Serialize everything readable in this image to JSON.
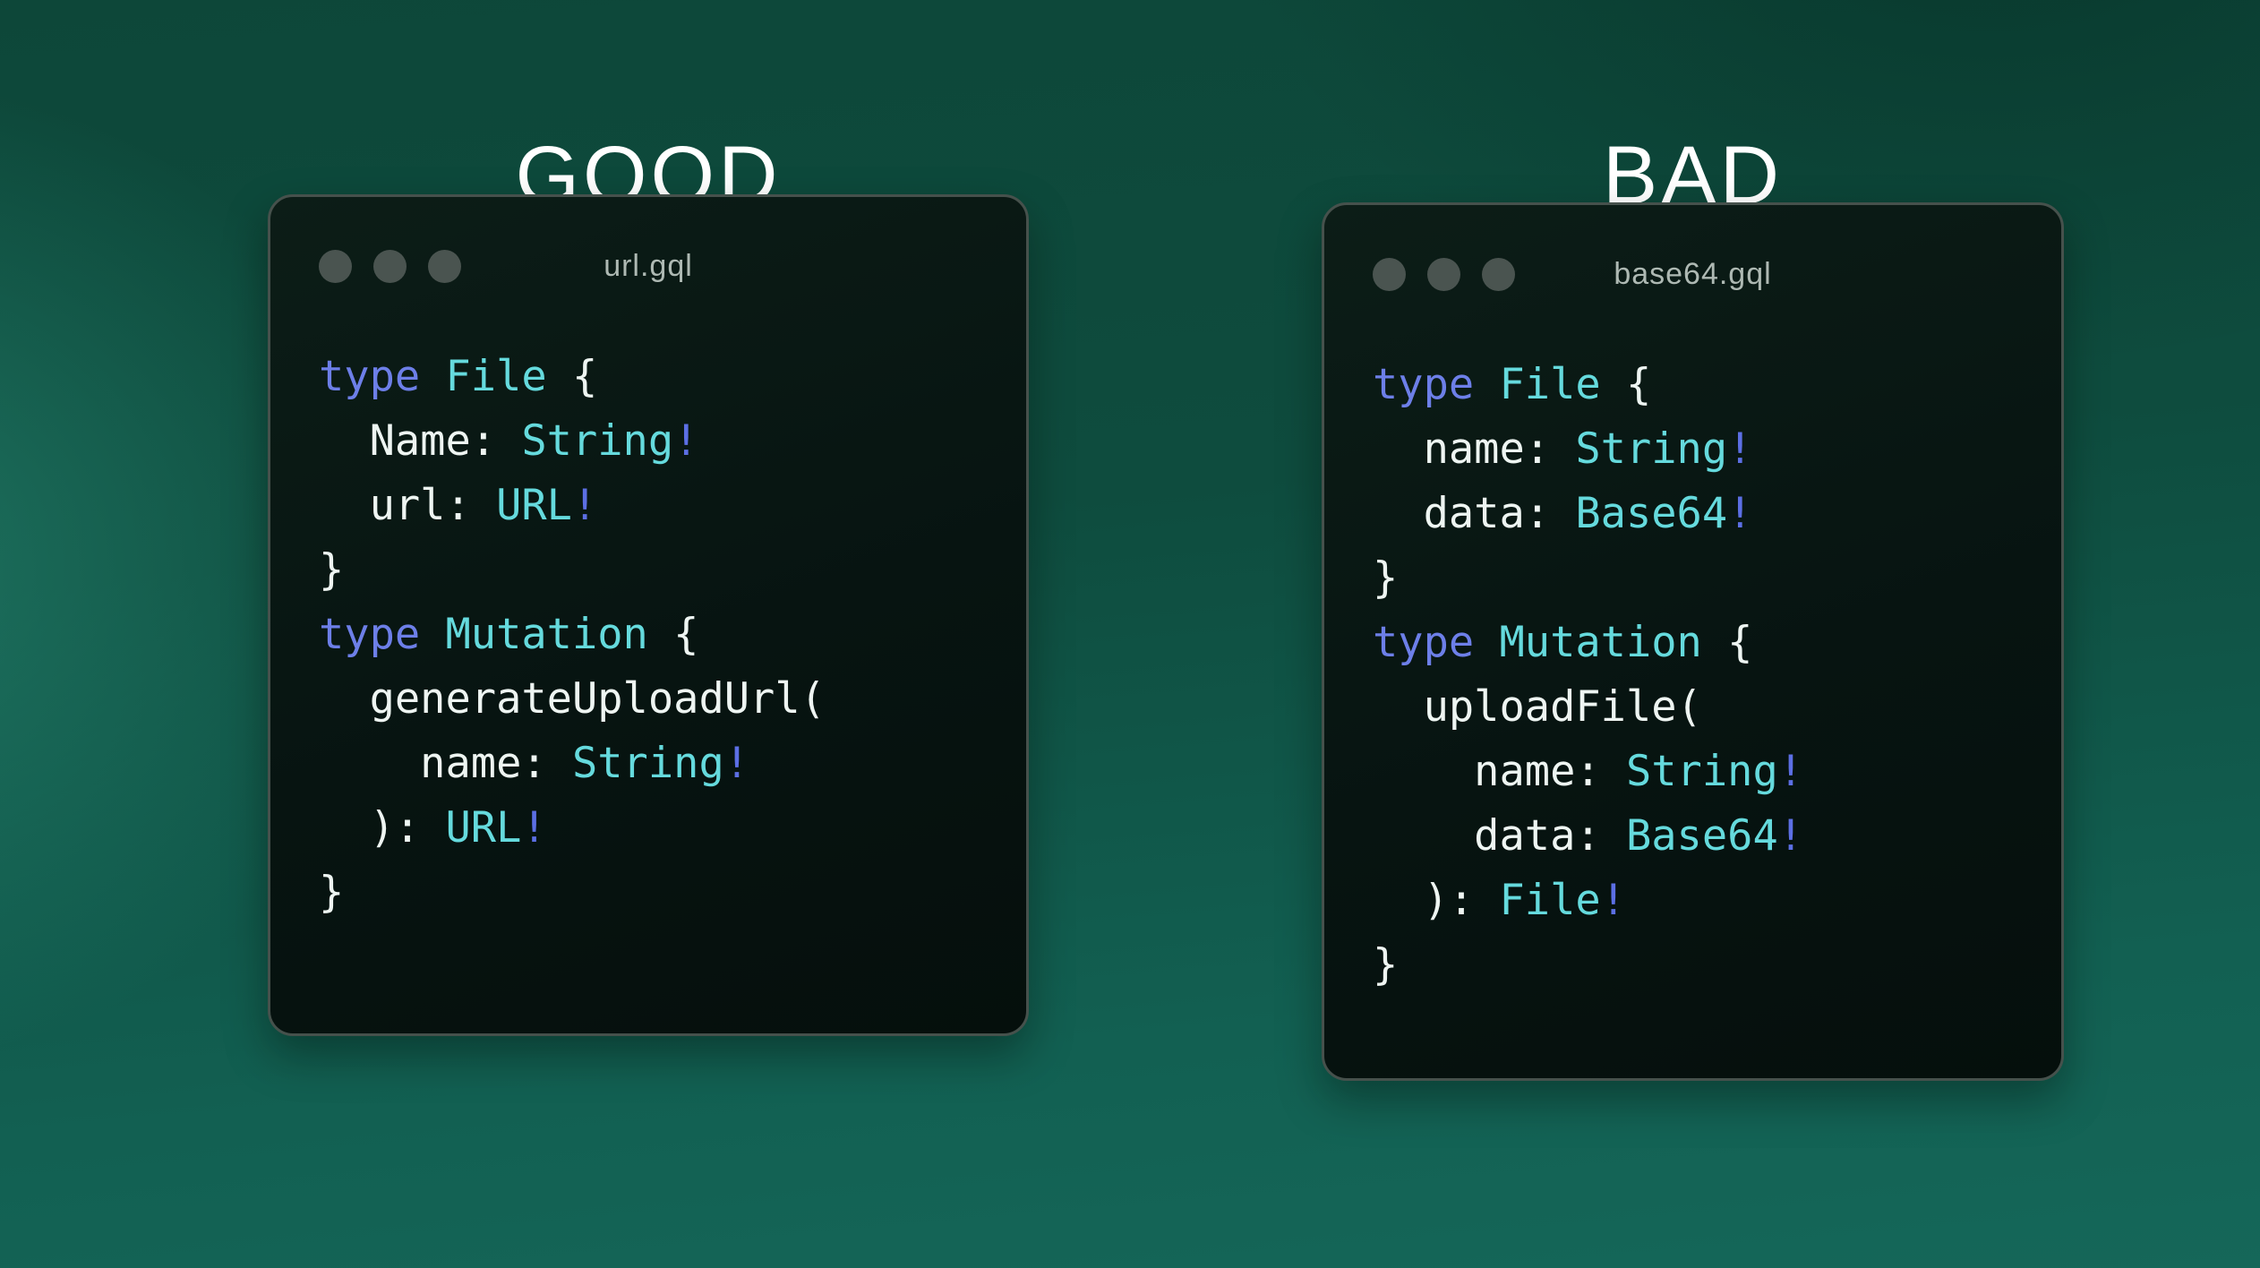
{
  "colors": {
    "keyword": "#6d7fe8",
    "type_name": "#65dadd",
    "plain": "#eef5f2",
    "bang": "#5c6fe4",
    "heading": "#ffffff",
    "filename": "#aeb9b3",
    "window_dot": "#4a5450"
  },
  "panels": [
    {
      "heading": "GOOD",
      "window": {
        "filename": "url.gql",
        "code_lines": [
          [
            {
              "t": "type",
              "c": "kw"
            },
            {
              "t": " ",
              "c": "pl"
            },
            {
              "t": "File",
              "c": "ty"
            },
            {
              "t": " {",
              "c": "pl"
            }
          ],
          [
            {
              "t": "  Name: ",
              "c": "pl"
            },
            {
              "t": "String",
              "c": "ty"
            },
            {
              "t": "!",
              "c": "bang"
            }
          ],
          [
            {
              "t": "  url: ",
              "c": "pl"
            },
            {
              "t": "URL",
              "c": "ty"
            },
            {
              "t": "!",
              "c": "bang"
            }
          ],
          [
            {
              "t": "}",
              "c": "pl"
            }
          ],
          [
            {
              "t": "type",
              "c": "kw"
            },
            {
              "t": " ",
              "c": "pl"
            },
            {
              "t": "Mutation",
              "c": "ty"
            },
            {
              "t": " {",
              "c": "pl"
            }
          ],
          [
            {
              "t": "  generateUploadUrl(",
              "c": "pl"
            }
          ],
          [
            {
              "t": "    name: ",
              "c": "pl"
            },
            {
              "t": "String",
              "c": "ty"
            },
            {
              "t": "!",
              "c": "bang"
            }
          ],
          [
            {
              "t": "  ): ",
              "c": "pl"
            },
            {
              "t": "URL",
              "c": "ty"
            },
            {
              "t": "!",
              "c": "bang"
            }
          ],
          [
            {
              "t": "}",
              "c": "pl"
            }
          ]
        ]
      }
    },
    {
      "heading": "BAD",
      "window": {
        "filename": "base64.gql",
        "code_lines": [
          [
            {
              "t": "type",
              "c": "kw"
            },
            {
              "t": " ",
              "c": "pl"
            },
            {
              "t": "File",
              "c": "ty"
            },
            {
              "t": " {",
              "c": "pl"
            }
          ],
          [
            {
              "t": "  name: ",
              "c": "pl"
            },
            {
              "t": "String",
              "c": "ty"
            },
            {
              "t": "!",
              "c": "bang"
            }
          ],
          [
            {
              "t": "  data: ",
              "c": "pl"
            },
            {
              "t": "Base64",
              "c": "ty"
            },
            {
              "t": "!",
              "c": "bang"
            }
          ],
          [
            {
              "t": "}",
              "c": "pl"
            }
          ],
          [
            {
              "t": "type",
              "c": "kw"
            },
            {
              "t": " ",
              "c": "pl"
            },
            {
              "t": "Mutation",
              "c": "ty"
            },
            {
              "t": " {",
              "c": "pl"
            }
          ],
          [
            {
              "t": "  uploadFile(",
              "c": "pl"
            }
          ],
          [
            {
              "t": "    name: ",
              "c": "pl"
            },
            {
              "t": "String",
              "c": "ty"
            },
            {
              "t": "!",
              "c": "bang"
            }
          ],
          [
            {
              "t": "    data: ",
              "c": "pl"
            },
            {
              "t": "Base64",
              "c": "ty"
            },
            {
              "t": "!",
              "c": "bang"
            }
          ],
          [
            {
              "t": "  ): ",
              "c": "pl"
            },
            {
              "t": "File",
              "c": "ty"
            },
            {
              "t": "!",
              "c": "bang"
            }
          ],
          [
            {
              "t": "}",
              "c": "pl"
            }
          ]
        ]
      }
    }
  ]
}
